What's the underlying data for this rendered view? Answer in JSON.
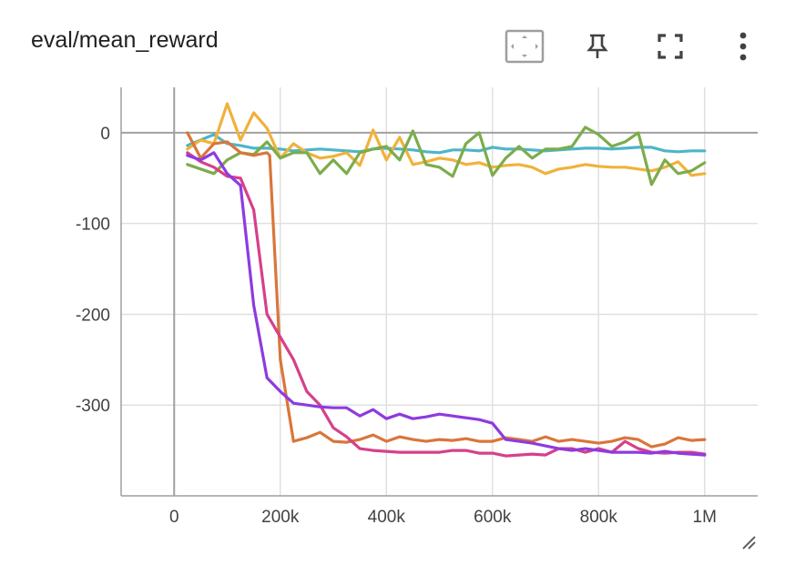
{
  "card": {
    "title": "eval/mean_reward",
    "toolbar": {
      "fit_icon": "fit-domain-icon",
      "pin_icon": "pin-icon",
      "fullscreen_icon": "fullscreen-icon",
      "menu_icon": "more-vert-icon"
    },
    "resize_icon": "resize-handle-icon"
  },
  "chart_data": {
    "type": "line",
    "title": "eval/mean_reward",
    "xlabel": "",
    "ylabel": "",
    "xlim": [
      -100000,
      1100000
    ],
    "ylim": [
      -400,
      50
    ],
    "grid": true,
    "x_ticks": [
      0,
      200000,
      400000,
      600000,
      800000,
      1000000
    ],
    "x_tick_labels": [
      "0",
      "200k",
      "400k",
      "600k",
      "800k",
      "1M"
    ],
    "y_ticks": [
      0,
      -100,
      -200,
      -300
    ],
    "y_tick_labels": [
      "0",
      "-100",
      "-200",
      "-300"
    ],
    "series": [
      {
        "color": "#4db6c8",
        "x": [
          25000,
          50000,
          75000,
          100000,
          125000,
          150000,
          175000,
          200000,
          225000,
          250000,
          275000,
          300000,
          325000,
          350000,
          375000,
          400000,
          425000,
          450000,
          475000,
          500000,
          525000,
          550000,
          575000,
          600000,
          625000,
          650000,
          675000,
          700000,
          725000,
          750000,
          775000,
          800000,
          825000,
          850000,
          875000,
          900000,
          925000,
          950000,
          975000,
          1000000
        ],
        "y": [
          -14,
          -8,
          -2,
          -12,
          -14,
          -17,
          -17,
          -18,
          -20,
          -19,
          -18,
          -19,
          -20,
          -21,
          -18,
          -17,
          -18,
          -19,
          -21,
          -22,
          -19,
          -19,
          -20,
          -16,
          -18,
          -18,
          -19,
          -20,
          -19,
          -18,
          -17,
          -17,
          -18,
          -17,
          -16,
          -16,
          -20,
          -21,
          -20,
          -20
        ]
      },
      {
        "color": "#f0b23b",
        "x": [
          25000,
          50000,
          75000,
          100000,
          125000,
          150000,
          175000,
          200000,
          225000,
          250000,
          275000,
          300000,
          325000,
          350000,
          375000,
          400000,
          425000,
          450000,
          475000,
          500000,
          525000,
          550000,
          575000,
          600000,
          625000,
          650000,
          675000,
          700000,
          725000,
          750000,
          775000,
          800000,
          825000,
          850000,
          875000,
          900000,
          925000,
          950000,
          975000,
          1000000
        ],
        "y": [
          -18,
          -8,
          -12,
          32,
          -8,
          22,
          5,
          -28,
          -12,
          -22,
          -28,
          -26,
          -22,
          -36,
          3,
          -30,
          -5,
          -35,
          -32,
          -28,
          -30,
          -35,
          -33,
          -38,
          -36,
          -35,
          -38,
          -45,
          -40,
          -38,
          -35,
          -37,
          -38,
          -38,
          -40,
          -42,
          -38,
          -32,
          -47,
          -45
        ]
      },
      {
        "color": "#7cac4c",
        "x": [
          25000,
          50000,
          75000,
          100000,
          125000,
          150000,
          175000,
          200000,
          225000,
          250000,
          275000,
          300000,
          325000,
          350000,
          375000,
          400000,
          425000,
          450000,
          475000,
          500000,
          525000,
          550000,
          575000,
          600000,
          625000,
          650000,
          675000,
          700000,
          725000,
          750000,
          775000,
          800000,
          825000,
          850000,
          875000,
          900000,
          925000,
          950000,
          975000,
          1000000
        ],
        "y": [
          -35,
          -40,
          -45,
          -30,
          -22,
          -24,
          -10,
          -28,
          -22,
          -22,
          -45,
          -30,
          -45,
          -22,
          -18,
          -15,
          -30,
          2,
          -35,
          -38,
          -48,
          -12,
          0,
          -47,
          -28,
          -15,
          -28,
          -18,
          -18,
          -15,
          6,
          -2,
          -15,
          -10,
          0,
          -57,
          -30,
          -45,
          -42,
          -33
        ]
      },
      {
        "color": "#d9763b",
        "x": [
          25000,
          50000,
          75000,
          100000,
          125000,
          150000,
          175000,
          180000,
          200000,
          225000,
          250000,
          275000,
          300000,
          325000,
          350000,
          375000,
          400000,
          425000,
          450000,
          475000,
          500000,
          525000,
          550000,
          575000,
          600000,
          625000,
          650000,
          675000,
          700000,
          725000,
          750000,
          775000,
          800000,
          825000,
          850000,
          875000,
          900000,
          925000,
          950000,
          975000,
          1000000
        ],
        "y": [
          0,
          -28,
          -12,
          -10,
          -22,
          -25,
          -22,
          -25,
          -250,
          -340,
          -336,
          -330,
          -340,
          -341,
          -338,
          -333,
          -340,
          -335,
          -338,
          -340,
          -338,
          -339,
          -337,
          -340,
          -340,
          -336,
          -338,
          -340,
          -335,
          -340,
          -338,
          -340,
          -342,
          -340,
          -336,
          -338,
          -346,
          -343,
          -336,
          -339,
          -338
        ]
      },
      {
        "color": "#d6408a",
        "x": [
          25000,
          50000,
          75000,
          100000,
          125000,
          150000,
          175000,
          200000,
          225000,
          250000,
          275000,
          300000,
          325000,
          350000,
          375000,
          400000,
          425000,
          450000,
          475000,
          500000,
          525000,
          550000,
          575000,
          600000,
          625000,
          650000,
          675000,
          700000,
          725000,
          750000,
          775000,
          800000,
          825000,
          850000,
          875000,
          900000,
          925000,
          950000,
          975000,
          1000000
        ],
        "y": [
          -22,
          -32,
          -38,
          -48,
          -50,
          -85,
          -200,
          -225,
          -250,
          -285,
          -300,
          -325,
          -335,
          -348,
          -350,
          -351,
          -352,
          -352,
          -352,
          -352,
          -350,
          -350,
          -353,
          -353,
          -356,
          -355,
          -354,
          -355,
          -348,
          -348,
          -352,
          -348,
          -352,
          -340,
          -348,
          -352,
          -353,
          -352,
          -352,
          -354
        ]
      },
      {
        "color": "#8e3ae0",
        "x": [
          25000,
          50000,
          75000,
          100000,
          125000,
          150000,
          175000,
          200000,
          225000,
          250000,
          275000,
          300000,
          325000,
          350000,
          375000,
          400000,
          425000,
          450000,
          475000,
          500000,
          525000,
          550000,
          575000,
          600000,
          625000,
          650000,
          675000,
          700000,
          725000,
          750000,
          775000,
          800000,
          825000,
          850000,
          875000,
          900000,
          925000,
          950000,
          975000,
          1000000
        ],
        "y": [
          -25,
          -30,
          -22,
          -45,
          -58,
          -190,
          -270,
          -285,
          -298,
          -300,
          -302,
          -303,
          -303,
          -312,
          -305,
          -315,
          -310,
          -315,
          -313,
          -310,
          -312,
          -314,
          -316,
          -320,
          -338,
          -340,
          -342,
          -345,
          -348,
          -350,
          -348,
          -350,
          -352,
          -352,
          -352,
          -353,
          -351,
          -353,
          -354,
          -355
        ]
      }
    ]
  }
}
